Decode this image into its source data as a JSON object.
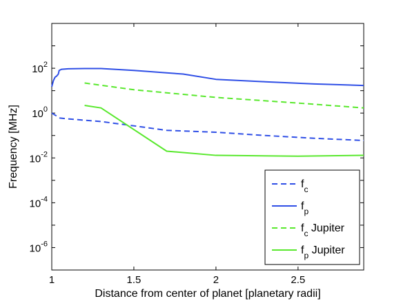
{
  "chart_data": {
    "type": "line",
    "title": "",
    "xlabel": "Distance from center of planet [planetary radii]",
    "ylabel": "Frequency [MHz]",
    "xscale": "linear",
    "yscale": "log",
    "xlim": [
      1,
      2.9
    ],
    "ylim": [
      1e-07,
      10000
    ],
    "x_ticks": [
      {
        "value": 1,
        "label": "1"
      },
      {
        "value": 1.5,
        "label": "1.5"
      },
      {
        "value": 2,
        "label": "2"
      },
      {
        "value": 2.5,
        "label": "2.5"
      }
    ],
    "y_ticks": [
      {
        "value": 1e-06,
        "base": "10",
        "exp": "-6"
      },
      {
        "value": 0.0001,
        "base": "10",
        "exp": "-4"
      },
      {
        "value": 0.01,
        "base": "10",
        "exp": "-2"
      },
      {
        "value": 1,
        "base": "10",
        "exp": "0"
      },
      {
        "value": 100,
        "base": "10",
        "exp": "2"
      }
    ],
    "grid": false,
    "legend_position": "bottom-right",
    "series": [
      {
        "name": "f",
        "subscript": "c",
        "suffix": "",
        "color": "#2e4ee6",
        "dash": "dashed",
        "x": [
          1.0,
          1.05,
          1.1,
          1.3,
          1.5,
          1.7,
          2.0,
          2.3,
          2.6,
          2.9
        ],
        "y": [
          1.0,
          0.6,
          0.55,
          0.42,
          0.27,
          0.17,
          0.14,
          0.1,
          0.075,
          0.06
        ]
      },
      {
        "name": "f",
        "subscript": "p",
        "suffix": "",
        "color": "#2e4ee6",
        "dash": "solid",
        "x": [
          1.0,
          1.01,
          1.02,
          1.03,
          1.04,
          1.045,
          1.06,
          1.1,
          1.2,
          1.3,
          1.5,
          1.8,
          2.0,
          2.3,
          2.6,
          2.9
        ],
        "y": [
          15,
          28,
          40,
          45,
          55,
          80,
          90,
          95,
          97,
          97,
          80,
          55,
          32,
          25,
          20,
          17
        ]
      },
      {
        "name": "f",
        "subscript": "c",
        "suffix": " Jupiter",
        "color": "#58e82c",
        "dash": "dashed",
        "x": [
          1.2,
          1.5,
          2.0,
          2.5,
          2.9
        ],
        "y": [
          22,
          11,
          5,
          2.8,
          1.7
        ]
      },
      {
        "name": "f",
        "subscript": "p",
        "suffix": " Jupiter",
        "color": "#58e82c",
        "dash": "solid",
        "x": [
          1.2,
          1.3,
          1.7,
          2.0,
          2.5,
          2.9
        ],
        "y": [
          2.2,
          1.7,
          0.02,
          0.013,
          0.012,
          0.013
        ]
      }
    ]
  }
}
